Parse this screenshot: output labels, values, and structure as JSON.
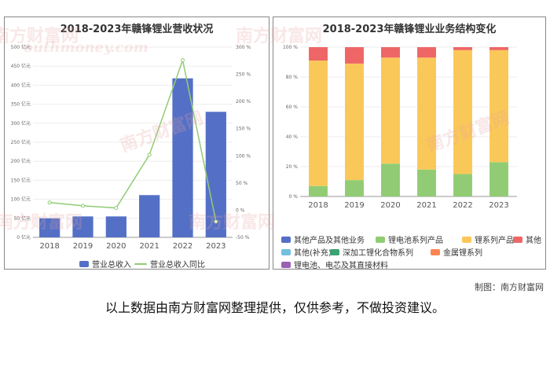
{
  "chart_data": [
    {
      "type": "bar",
      "title": "2018-2023年赣锋锂业营收状况",
      "categories": [
        "2018",
        "2019",
        "2020",
        "2021",
        "2022",
        "2023"
      ],
      "series": [
        {
          "name": "营业总收入",
          "values": [
            50,
            55,
            55,
            111,
            418,
            330
          ],
          "axis": "left",
          "color": "#5470c6"
        },
        {
          "name": "营业总收入同比",
          "values": [
            14,
            8,
            4,
            102,
            276,
            -21
          ],
          "axis": "right",
          "type": "line",
          "color": "#91cc75"
        }
      ],
      "y_left": {
        "ylim": [
          0,
          500
        ],
        "ticks": [
          "0 亿元",
          "50 亿元",
          "100 亿元",
          "150 亿元",
          "200 亿元",
          "250 亿元",
          "300 亿元",
          "350 亿元",
          "400 亿元",
          "450 亿元",
          "500 亿元"
        ],
        "tick_values": [
          0,
          50,
          100,
          150,
          200,
          250,
          300,
          350,
          400,
          450,
          500
        ]
      },
      "y_right": {
        "ylim": [
          -50,
          300
        ],
        "ticks": [
          "-50 %",
          "0 %",
          "50 %",
          "100 %",
          "150 %",
          "200 %",
          "250 %",
          "300 %"
        ],
        "tick_values": [
          -50,
          0,
          50,
          100,
          150,
          200,
          250,
          300
        ]
      },
      "legend": "bottom"
    },
    {
      "type": "bar",
      "stacked": true,
      "title": "2018-2023年赣锋锂业业务结构变化",
      "categories": [
        "2018",
        "2019",
        "2020",
        "2021",
        "2022",
        "2023"
      ],
      "series": [
        {
          "name": "其他产品及其他业务",
          "values": [
            0,
            0,
            0,
            0,
            0,
            0
          ],
          "color": "#5470c6"
        },
        {
          "name": "锂电池系列产品",
          "values": [
            7,
            11,
            22,
            18,
            15,
            23
          ],
          "color": "#91cc75"
        },
        {
          "name": "锂系列产品",
          "values": [
            84,
            78,
            71,
            75,
            83,
            75
          ],
          "color": "#fac858"
        },
        {
          "name": "其他",
          "values": [
            9,
            11,
            7,
            7,
            2,
            2
          ],
          "color": "#ee6666"
        },
        {
          "name": "其他(补充)",
          "values": [
            0,
            0,
            0,
            0,
            0,
            0
          ],
          "color": "#73c0de"
        },
        {
          "name": "深加工锂化合物系列",
          "values": [
            0,
            0,
            0,
            0,
            0,
            0
          ],
          "color": "#3ba272"
        },
        {
          "name": "金属锂系列",
          "values": [
            0,
            0,
            0,
            0,
            0,
            0
          ],
          "color": "#fc8452"
        },
        {
          "name": "锂电池、电芯及其直接材料",
          "values": [
            0,
            0,
            0,
            0,
            0,
            0
          ],
          "color": "#9a60b4"
        }
      ],
      "ylim": [
        0,
        100
      ],
      "ticks": [
        "0 %",
        "20 %",
        "40 %",
        "60 %",
        "80 %",
        "100 %"
      ],
      "tick_values": [
        0,
        20,
        40,
        60,
        80,
        100
      ],
      "legend": "bottom"
    }
  ],
  "credit": "制图：南方财富网",
  "disclaimer": "以上数据由南方财富网整理提供，仅供参考，不做投资建议。",
  "watermark": "南方财富网",
  "watermark_url": "outhmoney.com"
}
